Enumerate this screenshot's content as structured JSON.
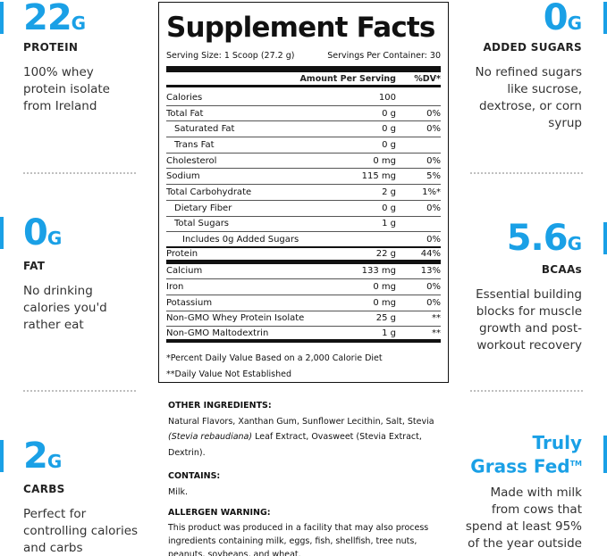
{
  "left": [
    {
      "value": "22",
      "unit": "G",
      "label": "PROTEIN",
      "desc": [
        "100% whey",
        "protein isolate",
        "from Ireland"
      ]
    },
    {
      "value": "0",
      "unit": "G",
      "label": "FAT",
      "desc": [
        "No drinking",
        "calories you'd",
        "rather eat"
      ]
    },
    {
      "value": "2",
      "unit": "G",
      "label": "CARBS",
      "desc": [
        "Perfect for",
        "controlling calories",
        "and carbs"
      ]
    }
  ],
  "right": [
    {
      "value": "0",
      "unit": "G",
      "label": "ADDED SUGARS",
      "desc": [
        "No refined sugars",
        "like sucrose,",
        "dextrose, or corn",
        "syrup"
      ]
    },
    {
      "value": "5.6",
      "unit": "G",
      "label": "BCAAs",
      "desc": [
        "Essential building",
        "blocks for muscle",
        "growth and post-",
        "workout recovery"
      ]
    },
    {
      "title_lines": [
        "Truly",
        "Grass Fed"
      ],
      "trademark": "TM",
      "desc": [
        "Made with milk",
        "from cows that",
        "spend at least 95%",
        "of the year outside"
      ]
    }
  ],
  "facts": {
    "title": "Supplement Facts",
    "serving_size": "Serving Size: 1 Scoop (27.2 g)",
    "servings_per_container": "Servings Per Container: 30",
    "col_amount": "Amount Per Serving",
    "col_dv": "%DV*",
    "rows": [
      {
        "name": "Calories",
        "amount": "100",
        "dv": ""
      },
      {
        "name": "Total Fat",
        "amount": "0 g",
        "dv": "0%"
      },
      {
        "name": "Saturated Fat",
        "amount": "0 g",
        "dv": "0%"
      },
      {
        "name": "Trans Fat",
        "amount": "0 g",
        "dv": ""
      },
      {
        "name": "Cholesterol",
        "amount": "0 mg",
        "dv": "0%"
      },
      {
        "name": "Sodium",
        "amount": "115 mg",
        "dv": "5%"
      },
      {
        "name": "Total Carbohydrate",
        "amount": "2 g",
        "dv": "1%*"
      },
      {
        "name": "Dietary Fiber",
        "amount": "0 g",
        "dv": "0%"
      },
      {
        "name": "Total Sugars",
        "amount": "1 g",
        "dv": ""
      },
      {
        "name": "Includes 0g Added Sugars",
        "amount": "",
        "dv": "0%"
      },
      {
        "name": "Protein",
        "amount": "22 g",
        "dv": "44%"
      },
      {
        "name": "Calcium",
        "amount": "133 mg",
        "dv": "13%"
      },
      {
        "name": "Iron",
        "amount": "0 mg",
        "dv": "0%"
      },
      {
        "name": "Potassium",
        "amount": "0 mg",
        "dv": "0%"
      },
      {
        "name": "Non-GMO Whey Protein Isolate",
        "amount": "25 g",
        "dv": "**"
      },
      {
        "name": "Non-GMO Maltodextrin",
        "amount": "1 g",
        "dv": "**"
      }
    ],
    "footnote1": "*Percent Daily Value Based on a 2,000 Calorie Diet",
    "footnote2": "**Daily Value Not Established"
  },
  "ingredients": {
    "other_heading": "OTHER INGREDIENTS:",
    "other_text_a": "Natural Flavors, Xanthan Gum, Sunflower Lecithin, Salt, Stevia",
    "other_italic": "(Stevia rebaudiana)",
    "other_text_b": "Leaf Extract, Ovasweet (Stevia Extract, Dextrin).",
    "contains_heading": "CONTAINS:",
    "contains_text": "Milk.",
    "allergen_heading": "ALLERGEN WARNING:",
    "allergen_text": "This product was produced in a facility that may also process ingredients containing milk, eggs, fish, shellfish, tree nuts, peanuts, soybeans, and wheat."
  },
  "colors": {
    "accent": "#1aa0e6",
    "text": "#222222",
    "rule": "#111111",
    "dots": "#bfbfbf"
  }
}
